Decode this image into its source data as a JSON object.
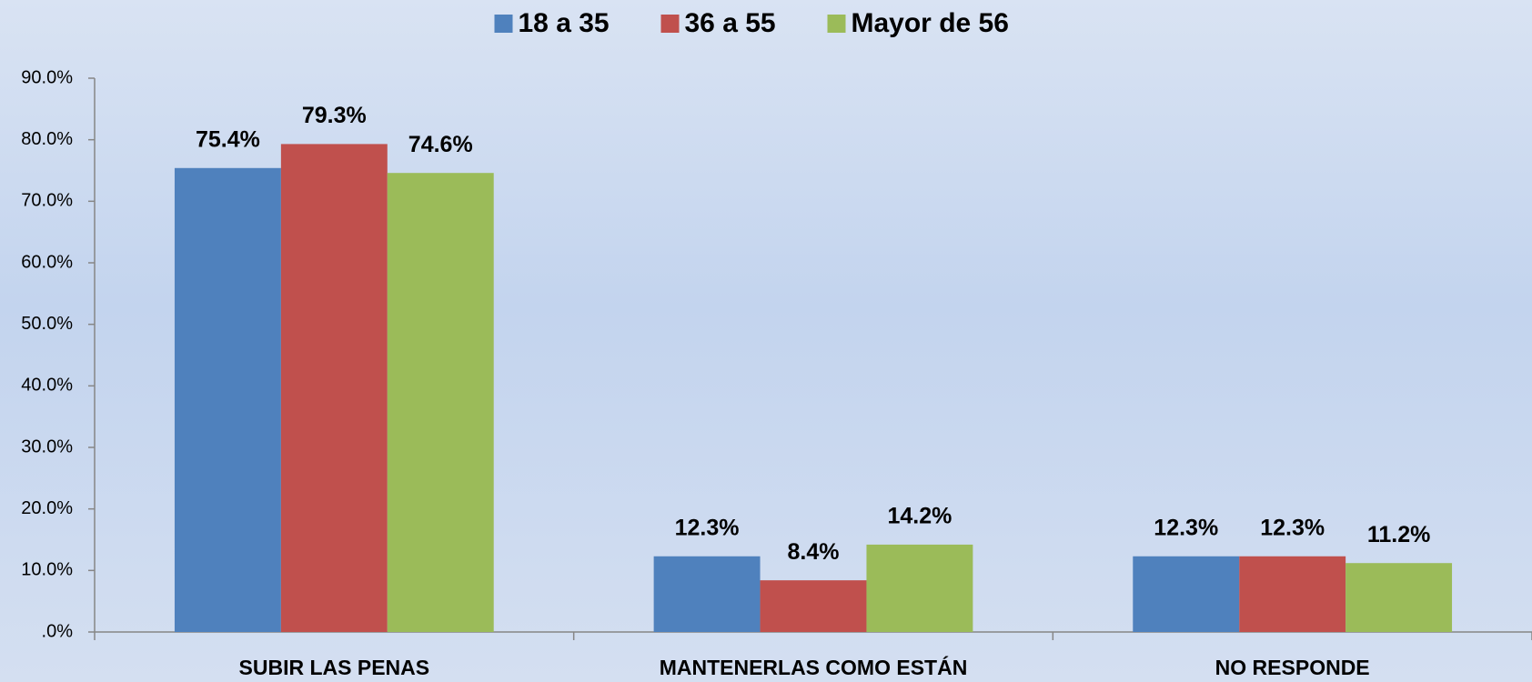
{
  "chart_data": {
    "type": "bar",
    "categories": [
      "SUBIR LAS PENAS",
      "MANTENERLAS COMO ESTÁN",
      "NO RESPONDE"
    ],
    "series": [
      {
        "name": "18 a 35",
        "color": "#4f81bd",
        "values": [
          75.4,
          12.3,
          12.3
        ],
        "value_labels": [
          "75.4%",
          "12.3%",
          "12.3%"
        ]
      },
      {
        "name": "36 a 55",
        "color": "#c0504d",
        "values": [
          79.3,
          8.4,
          12.3
        ],
        "value_labels": [
          "79.3%",
          "8.4%",
          "12.3%"
        ]
      },
      {
        "name": "Mayor de 56",
        "color": "#9bbb59",
        "values": [
          74.6,
          14.2,
          11.2
        ],
        "value_labels": [
          "74.6%",
          "14.2%",
          "11.2%"
        ]
      }
    ],
    "ylim": [
      0,
      90
    ],
    "yticks": [
      {
        "value": 0,
        "label": ".0%"
      },
      {
        "value": 10,
        "label": "10.0%"
      },
      {
        "value": 20,
        "label": "20.0%"
      },
      {
        "value": 30,
        "label": "30.0%"
      },
      {
        "value": 40,
        "label": "40.0%"
      },
      {
        "value": 50,
        "label": "50.0%"
      },
      {
        "value": 60,
        "label": "60.0%"
      },
      {
        "value": 70,
        "label": "70.0%"
      },
      {
        "value": 80,
        "label": "80.0%"
      },
      {
        "value": 90,
        "label": "90.0%"
      }
    ],
    "legend": "top",
    "grid": false
  }
}
